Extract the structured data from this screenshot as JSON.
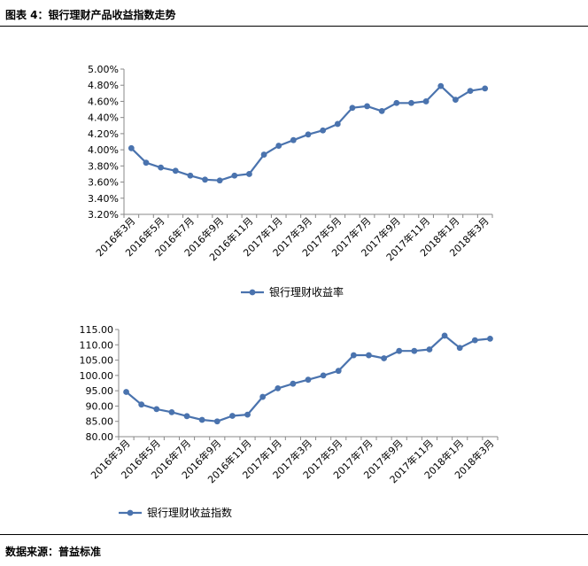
{
  "figure_title": "图表 4：银行理财产品收益指数走势",
  "source": "数据来源：普益标准",
  "chart_data": [
    {
      "type": "line",
      "title": "",
      "xlabel": "",
      "ylabel": "",
      "ylim": [
        3.2,
        5.0
      ],
      "yticks": [
        "3.20%",
        "3.40%",
        "3.60%",
        "3.80%",
        "4.00%",
        "4.20%",
        "4.40%",
        "4.60%",
        "4.80%",
        "5.00%"
      ],
      "xtick_labels": [
        "2016年3月",
        "2016年5月",
        "2016年7月",
        "2016年9月",
        "2016年11月",
        "2017年1月",
        "2017年3月",
        "2017年5月",
        "2017年7月",
        "2017年9月",
        "2017年11月",
        "2018年1月",
        "2018年3月"
      ],
      "categories": [
        "2016年3月",
        "2016年4月",
        "2016年5月",
        "2016年6月",
        "2016年7月",
        "2016年8月",
        "2016年9月",
        "2016年10月",
        "2016年11月",
        "2016年12月",
        "2017年1月",
        "2017年2月",
        "2017年3月",
        "2017年4月",
        "2017年5月",
        "2017年6月",
        "2017年7月",
        "2017年8月",
        "2017年9月",
        "2017年10月",
        "2017年11月",
        "2017年12月",
        "2018年1月",
        "2018年2月",
        "2018年3月"
      ],
      "series": [
        {
          "name": "银行理财收益率",
          "values": [
            4.02,
            3.84,
            3.78,
            3.74,
            3.68,
            3.63,
            3.62,
            3.68,
            3.7,
            3.94,
            4.05,
            4.12,
            4.19,
            4.24,
            4.32,
            4.52,
            4.54,
            4.48,
            4.58,
            4.58,
            4.6,
            4.79,
            4.62,
            4.73,
            4.76
          ]
        }
      ],
      "grid": false,
      "legend": "bottom",
      "color": "#4A73AE"
    },
    {
      "type": "line",
      "title": "",
      "xlabel": "",
      "ylabel": "",
      "ylim": [
        80,
        115
      ],
      "yticks": [
        "80.00",
        "85.00",
        "90.00",
        "95.00",
        "100.00",
        "105.00",
        "110.00",
        "115.00"
      ],
      "xtick_labels": [
        "2016年3月",
        "2016年5月",
        "2016年7月",
        "2016年9月",
        "2016年11月",
        "2017年1月",
        "2017年3月",
        "2017年5月",
        "2017年7月",
        "2017年9月",
        "2017年11月",
        "2018年1月",
        "2018年3月"
      ],
      "categories": [
        "2016年3月",
        "2016年4月",
        "2016年5月",
        "2016年6月",
        "2016年7月",
        "2016年8月",
        "2016年9月",
        "2016年10月",
        "2016年11月",
        "2016年12月",
        "2017年1月",
        "2017年2月",
        "2017年3月",
        "2017年4月",
        "2017年5月",
        "2017年6月",
        "2017年7月",
        "2017年8月",
        "2017年9月",
        "2017年10月",
        "2017年11月",
        "2017年12月",
        "2018年1月",
        "2018年2月",
        "2018年3月"
      ],
      "series": [
        {
          "name": "银行理财收益指数",
          "values": [
            94.6,
            90.5,
            89.0,
            88.0,
            86.7,
            85.5,
            85.0,
            86.8,
            87.2,
            93.0,
            95.8,
            97.3,
            98.6,
            100.0,
            101.5,
            106.6,
            106.6,
            105.6,
            108.0,
            108.0,
            108.5,
            113.0,
            109.0,
            111.5,
            112.0
          ]
        }
      ],
      "grid": false,
      "legend": "bottom",
      "color": "#4A73AE"
    }
  ]
}
